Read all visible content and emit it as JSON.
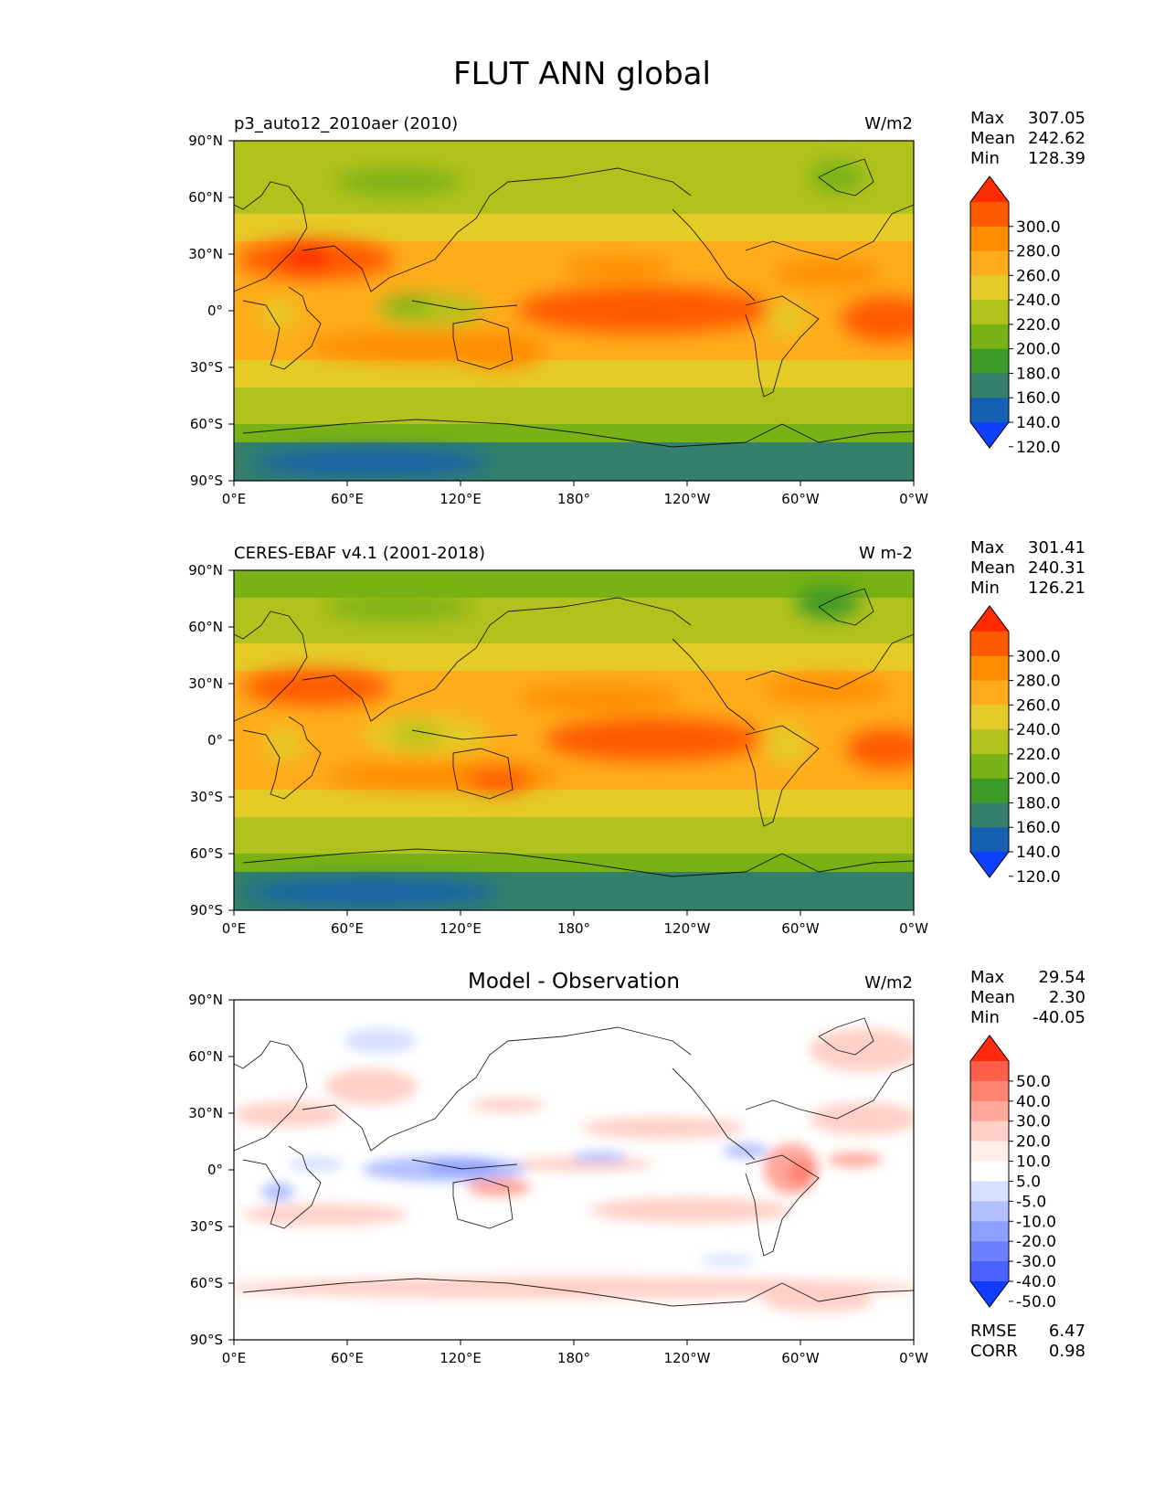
{
  "figure_title": "FLUT ANN global",
  "tick_labels": {
    "lat": [
      "90°N",
      "60°N",
      "30°N",
      "0°",
      "30°S",
      "60°S",
      "90°S"
    ],
    "lon": [
      "0°E",
      "60°E",
      "120°E",
      "180°",
      "120°W",
      "60°W",
      "0°W"
    ]
  },
  "stat_labels": {
    "max": "Max",
    "mean": "Mean",
    "min": "Min",
    "rmse": "RMSE",
    "corr": "CORR"
  },
  "panels": [
    {
      "title_left": "p3_auto12_2010aer (2010)",
      "title_center": "",
      "units": "W/m2",
      "stats": {
        "max": "307.05",
        "mean": "242.62",
        "min": "128.39"
      },
      "colorbar": {
        "labels": [
          "300.0",
          "280.0",
          "260.0",
          "240.0",
          "220.0",
          "200.0",
          "180.0",
          "160.0",
          "140.0",
          "120.0"
        ],
        "colors": [
          "#ff2a00",
          "#ff5a00",
          "#ff8c00",
          "#ffac1c",
          "#e5cb27",
          "#b2c21d",
          "#78b214",
          "#3e9a27",
          "#34806a",
          "#1560b0",
          "#0f40ff"
        ]
      }
    },
    {
      "title_left": "CERES-EBAF v4.1 (2001-2018)",
      "title_center": "",
      "units": "W m-2",
      "stats": {
        "max": "301.41",
        "mean": "240.31",
        "min": "126.21"
      },
      "colorbar": {
        "labels": [
          "300.0",
          "280.0",
          "260.0",
          "240.0",
          "220.0",
          "200.0",
          "180.0",
          "160.0",
          "140.0",
          "120.0"
        ],
        "colors": [
          "#ff2a00",
          "#ff5a00",
          "#ff8c00",
          "#ffac1c",
          "#e5cb27",
          "#b2c21d",
          "#78b214",
          "#3e9a27",
          "#34806a",
          "#1560b0",
          "#0f40ff"
        ]
      }
    },
    {
      "title_left": "",
      "title_center": "Model - Observation",
      "units": "W/m2",
      "stats": {
        "max": "29.54",
        "mean": "2.30",
        "min": "-40.05",
        "rmse": "6.47",
        "corr": "0.98"
      },
      "colorbar": {
        "labels": [
          "50.0",
          "40.0",
          "30.0",
          "20.0",
          "10.0",
          "5.0",
          "-5.0",
          "-10.0",
          "-20.0",
          "-30.0",
          "-40.0",
          "-50.0"
        ],
        "colors": [
          "#ff2a10",
          "#ff5e4a",
          "#ff8373",
          "#ffa89c",
          "#ffd0c8",
          "#ffeeea",
          "#ffffff",
          "#d8e0ff",
          "#b2c0ff",
          "#8ea0ff",
          "#6c80ff",
          "#4a60ff",
          "#0f3cff"
        ]
      }
    }
  ],
  "map_data": {
    "field": "FLUT (top-of-model outgoing longwave radiation)",
    "regions_model": [
      "Low values (120-160) over Antarctica",
      "Highest values (280-300+) over Sahara/Arabia",
      "High values (260-280) over eastern/central tropical Pacific south of equator and subtropical oceans",
      "Low values (180-220) over Maritime Continent, Amazon, central Africa"
    ],
    "regions_obs": [
      "Low values (120-160) over Antarctica",
      "Highest values (280-300) over Sahara/Arabia and SE Pacific",
      "Low values (180-220) over Maritime Continent and tropical land"
    ],
    "regions_diff": [
      "Negative bias (blue, -10 to -30) over Maritime Continent/Indian Ocean and near Central America",
      "Positive bias (red, 10-20) over tropical South America, Africa, subtropical Pacific and Southern Ocean"
    ]
  }
}
